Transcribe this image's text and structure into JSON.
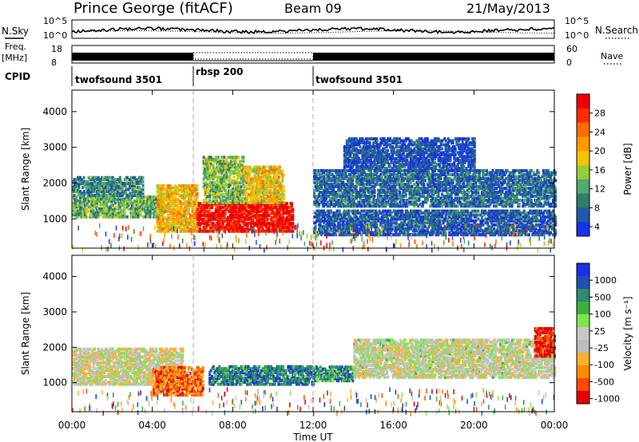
{
  "header": {
    "title": "Prince George (fitACF)",
    "beam": "Beam 09",
    "date": "21/May/2013"
  },
  "left_labels": {
    "nsky": "N.Sky",
    "nsky_ticks": [
      "10^5",
      "10^0"
    ],
    "freq": "Freq.",
    "freq_unit": "[MHz]",
    "freq_ticks": [
      "18",
      "8"
    ],
    "cpid": "CPID"
  },
  "right_labels": {
    "nsearch": "N.Search",
    "nsearch_ticks": [
      "10^5",
      "10^0"
    ],
    "nave_ticks": [
      "60",
      "0"
    ],
    "nave": "Nave"
  },
  "cpid_segments": [
    {
      "label": "twofsound 3501",
      "start": 0,
      "end": 6
    },
    {
      "label": "rbsp 200",
      "start": 6,
      "end": 12
    },
    {
      "label": "twofsound 3501",
      "start": 12,
      "end": 24
    }
  ],
  "colors": {
    "power": [
      "#1a30e8",
      "#1f58a8",
      "#2e7d6e",
      "#52a870",
      "#9acd32",
      "#f5c400",
      "#ff9900",
      "#ff6a00",
      "#ff2a00",
      "#ee0000"
    ],
    "velocity": [
      "#e00000",
      "#ff4a00",
      "#ff8a00",
      "#ffb030",
      "#bdbdbd",
      "#c8c8c8",
      "#7ee64a",
      "#3bb040",
      "#2e8b70",
      "#2050b0",
      "#1a30e8"
    ]
  },
  "chart_data": [
    {
      "type": "heatmap",
      "name": "power-panel",
      "ylabel": "Slant Range [km]",
      "yticks": [
        1000,
        2000,
        3000,
        4000
      ],
      "ylim": [
        180,
        4600
      ],
      "xlim": [
        0,
        24
      ],
      "colorbar": {
        "label": "Power [dB]",
        "ticks": [
          "28",
          "24",
          "20",
          "16",
          "12",
          "8",
          "4"
        ],
        "range": [
          0,
          30
        ]
      },
      "bands": [
        {
          "t0": 0.0,
          "t1": 4.5,
          "r0": 1100,
          "r1": 1700,
          "level": 0.35
        },
        {
          "t0": 0.0,
          "t1": 3.5,
          "r0": 1700,
          "r1": 2200,
          "level": 0.25
        },
        {
          "t0": 4.2,
          "t1": 6.2,
          "r0": 700,
          "r1": 2000,
          "level": 0.6
        },
        {
          "t0": 6.2,
          "t1": 11.0,
          "r0": 700,
          "r1": 1500,
          "level": 0.95
        },
        {
          "t0": 6.5,
          "t1": 8.5,
          "r0": 1500,
          "r1": 2800,
          "level": 0.4
        },
        {
          "t0": 8.5,
          "t1": 10.5,
          "r0": 1500,
          "r1": 2500,
          "level": 0.55
        },
        {
          "t0": 12.0,
          "t1": 24.0,
          "r0": 1400,
          "r1": 2400,
          "level": 0.2
        },
        {
          "t0": 12.0,
          "t1": 24.0,
          "r0": 600,
          "r1": 1300,
          "level": 0.15
        },
        {
          "t0": 13.5,
          "t1": 20.0,
          "r0": 2400,
          "r1": 3300,
          "level": 0.12
        }
      ]
    },
    {
      "type": "heatmap",
      "name": "velocity-panel",
      "ylabel": "Slant Range [km]",
      "yticks": [
        1000,
        2000,
        3000,
        4000
      ],
      "ylim": [
        180,
        4600
      ],
      "xlim": [
        0,
        24
      ],
      "xticks": [
        "00:00",
        "04:00",
        "08:00",
        "12:00",
        "16:00",
        "20:00",
        "00:00"
      ],
      "xlabel": "Time UT",
      "colorbar": {
        "label": "Velocity [m s⁻¹]",
        "ticks": [
          "1000",
          "500",
          "100",
          "25",
          "-25",
          "-100",
          "-500",
          "-1000"
        ],
        "range": [
          -1000,
          1000
        ]
      },
      "bands": [
        {
          "t0": 0.0,
          "t1": 5.5,
          "r0": 1000,
          "r1": 2000,
          "level": 0.45
        },
        {
          "t0": 4.0,
          "t1": 6.5,
          "r0": 700,
          "r1": 1500,
          "level": 0.2
        },
        {
          "t0": 6.8,
          "t1": 12.0,
          "r0": 1000,
          "r1": 1500,
          "level": 0.8
        },
        {
          "t0": 12.0,
          "t1": 14.0,
          "r0": 1100,
          "r1": 1500,
          "level": 0.75
        },
        {
          "t0": 14.0,
          "t1": 24.0,
          "r0": 1200,
          "r1": 2300,
          "level": 0.47
        },
        {
          "t0": 23.0,
          "t1": 24.0,
          "r0": 1800,
          "r1": 2600,
          "level": 0.05
        }
      ]
    }
  ]
}
